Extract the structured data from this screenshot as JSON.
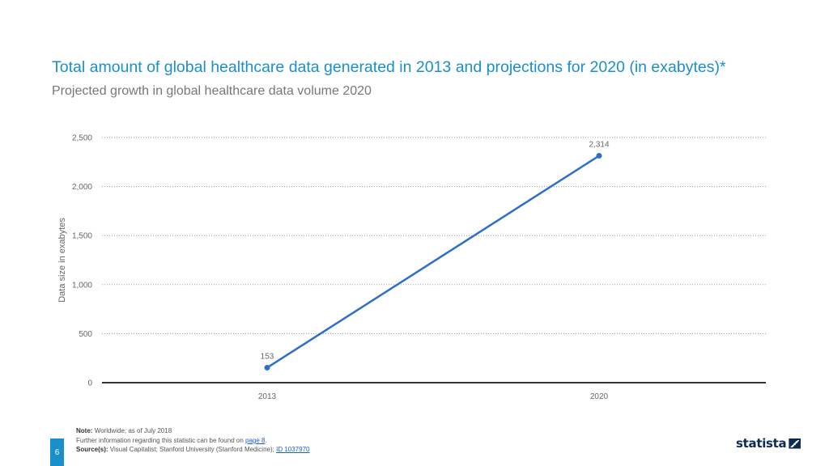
{
  "header": {
    "title": "Total amount of global healthcare data generated in 2013 and projections for 2020 (in exabytes)*",
    "subtitle": "Projected growth in global healthcare data volume 2020"
  },
  "chart_data": {
    "type": "line",
    "title": "Total amount of global healthcare data generated in 2013 and projections for 2020 (in exabytes)*",
    "subtitle": "Projected growth in global healthcare data volume 2020",
    "ylabel": "Data size in exabytes",
    "xlabel": "",
    "categories": [
      "2013",
      "2020"
    ],
    "series": [
      {
        "values": [
          153,
          2314
        ]
      }
    ],
    "data_labels": [
      "153",
      "2,314"
    ],
    "ylim": [
      0,
      2500
    ],
    "yticks": [
      0,
      500,
      1000,
      1500,
      2000,
      2500
    ],
    "ytick_labels": [
      "0",
      "500",
      "1,000",
      "1,500",
      "2,000",
      "2,500"
    ],
    "grid": true,
    "line_color": "#2f6fcb"
  },
  "footer": {
    "note_label": "Note:",
    "note_text": "Worldwide; as of July 2018",
    "further_text": "Further information regarding this statistic can be found on",
    "further_link": "page 8",
    "source_label": "Source(s):",
    "source_text": "Visual Capitalist; Stanford University (Stanford Medicine);",
    "source_link": "ID 1037970"
  },
  "page_number": "6",
  "brand": "statista"
}
